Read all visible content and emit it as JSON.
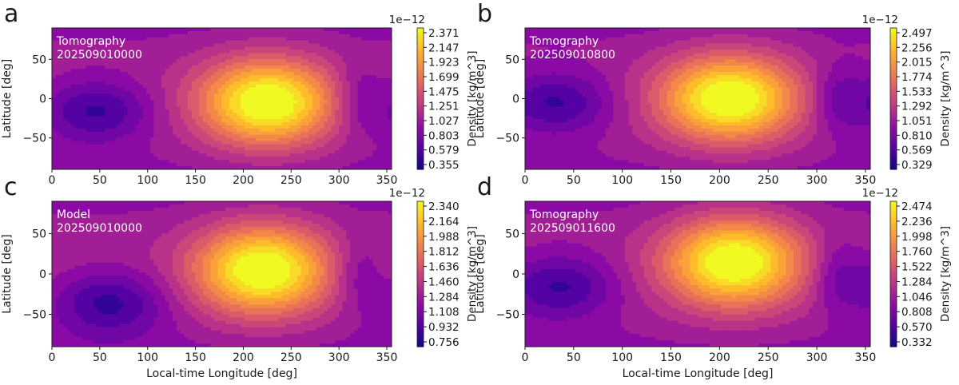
{
  "figure": {
    "xlabel": "Local-time Longitude [deg]",
    "ylabel": "Latitude [deg]",
    "colorbar_label": "Density [kg/m^3]",
    "colorbar_multiplier": "1e−12"
  },
  "colors": {
    "colormap": "plasma",
    "annotation_text": "#ffffff",
    "axis": "#1a1a1a"
  },
  "chart_data": [
    {
      "type": "heatmap",
      "panel_letter": "a",
      "annotation_line1": "Tomography",
      "annotation_line2": "202509010000",
      "x_ticks": [
        "0",
        "50",
        "100",
        "150",
        "200",
        "250",
        "300",
        "350"
      ],
      "y_ticks": [
        "50",
        "0",
        "−50"
      ],
      "xlim": [
        0,
        355
      ],
      "ylim": [
        -90,
        90
      ],
      "peak": {
        "lon": 225,
        "lat": -5
      },
      "trough": {
        "lon": 45,
        "lat": -15
      },
      "colorbar_ticks": [
        "2.371",
        "2.147",
        "1.923",
        "1.699",
        "1.475",
        "1.251",
        "1.027",
        "0.803",
        "0.579",
        "0.355"
      ],
      "colorbar_min": 0.355,
      "colorbar_max": 2.371,
      "show_xlabel": false
    },
    {
      "type": "heatmap",
      "panel_letter": "b",
      "annotation_line1": "Tomography",
      "annotation_line2": "202509010800",
      "x_ticks": [
        "0",
        "50",
        "100",
        "150",
        "200",
        "250",
        "300",
        "350"
      ],
      "y_ticks": [
        "50",
        "0",
        "−50"
      ],
      "xlim": [
        0,
        355
      ],
      "ylim": [
        -90,
        90
      ],
      "peak": {
        "lon": 210,
        "lat": 0
      },
      "trough": {
        "lon": 30,
        "lat": -5
      },
      "colorbar_ticks": [
        "2.497",
        "2.256",
        "2.015",
        "1.774",
        "1.533",
        "1.292",
        "1.051",
        "0.810",
        "0.569",
        "0.329"
      ],
      "colorbar_min": 0.329,
      "colorbar_max": 2.497,
      "show_xlabel": false
    },
    {
      "type": "heatmap",
      "panel_letter": "c",
      "annotation_line1": "Model",
      "annotation_line2": "202509010000",
      "x_ticks": [
        "0",
        "50",
        "100",
        "150",
        "200",
        "250",
        "300",
        "350"
      ],
      "y_ticks": [
        "50",
        "0",
        "−50"
      ],
      "xlim": [
        0,
        355
      ],
      "ylim": [
        -90,
        90
      ],
      "peak": {
        "lon": 220,
        "lat": 5
      },
      "trough": {
        "lon": 60,
        "lat": -35
      },
      "colorbar_ticks": [
        "2.340",
        "2.164",
        "1.988",
        "1.812",
        "1.636",
        "1.460",
        "1.284",
        "1.108",
        "0.932",
        "0.756"
      ],
      "colorbar_min": 0.756,
      "colorbar_max": 2.34,
      "show_xlabel": true
    },
    {
      "type": "heatmap",
      "panel_letter": "d",
      "annotation_line1": "Tomography",
      "annotation_line2": "202509011600",
      "x_ticks": [
        "0",
        "50",
        "100",
        "150",
        "200",
        "250",
        "300",
        "350"
      ],
      "y_ticks": [
        "50",
        "0",
        "−50"
      ],
      "xlim": [
        0,
        355
      ],
      "ylim": [
        -90,
        90
      ],
      "peak": {
        "lon": 215,
        "lat": 15
      },
      "trough": {
        "lon": 35,
        "lat": -15
      },
      "colorbar_ticks": [
        "2.474",
        "2.236",
        "1.998",
        "1.760",
        "1.522",
        "1.284",
        "1.046",
        "0.808",
        "0.570",
        "0.332"
      ],
      "colorbar_min": 0.332,
      "colorbar_max": 2.474,
      "show_xlabel": true
    }
  ]
}
